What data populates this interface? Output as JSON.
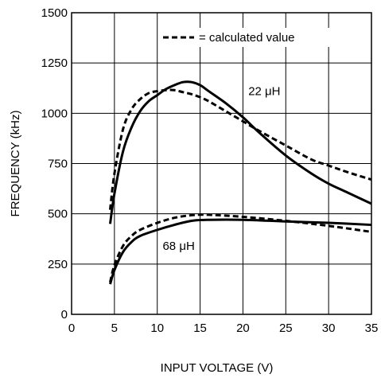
{
  "chart_data": {
    "type": "line",
    "xlabel": "INPUT VOLTAGE (V)",
    "ylabel": "FREQUENCY (kHz)",
    "xlim": [
      0,
      35
    ],
    "ylim": [
      0,
      1500
    ],
    "xticks": [
      0,
      5,
      10,
      15,
      20,
      25,
      30,
      35
    ],
    "yticks": [
      0,
      250,
      500,
      750,
      1000,
      1250,
      1500
    ],
    "grid": true,
    "legend": {
      "label": "= calculated value",
      "placement": "top-right",
      "style": "dashed"
    },
    "annotations": [
      {
        "text": "22 μH",
        "x": 22.5,
        "y": 1110
      },
      {
        "text": "68 μH",
        "x": 12.5,
        "y": 340
      }
    ],
    "series": [
      {
        "style": "solid",
        "x": [
          4.5,
          5,
          6,
          7,
          8,
          9,
          10,
          11,
          12,
          13,
          14,
          15,
          16,
          18,
          20,
          22,
          25,
          28,
          30,
          32,
          35
        ],
        "y": [
          450,
          600,
          810,
          930,
          1010,
          1060,
          1090,
          1120,
          1140,
          1155,
          1155,
          1140,
          1110,
          1050,
          980,
          900,
          790,
          700,
          650,
          610,
          550
        ]
      },
      {
        "style": "dashed",
        "x": [
          4.5,
          5,
          6,
          7,
          8,
          9,
          10,
          11,
          12,
          13,
          14,
          15,
          16,
          18,
          20,
          22,
          25,
          28,
          30,
          32,
          35
        ],
        "y": [
          520,
          700,
          920,
          1020,
          1070,
          1100,
          1110,
          1115,
          1115,
          1105,
          1095,
          1080,
          1060,
          1010,
          960,
          910,
          840,
          770,
          740,
          710,
          670
        ]
      },
      {
        "style": "solid",
        "x": [
          4.5,
          5,
          6,
          7,
          8,
          10,
          12,
          14,
          16,
          20,
          25,
          30,
          35
        ],
        "y": [
          150,
          220,
          310,
          360,
          390,
          420,
          445,
          465,
          470,
          470,
          462,
          455,
          445
        ]
      },
      {
        "style": "dashed",
        "x": [
          4.5,
          5,
          6,
          7,
          8,
          10,
          12,
          14,
          16,
          20,
          25,
          30,
          35
        ],
        "y": [
          160,
          245,
          340,
          390,
          420,
          455,
          480,
          493,
          495,
          485,
          465,
          440,
          410
        ]
      }
    ]
  }
}
